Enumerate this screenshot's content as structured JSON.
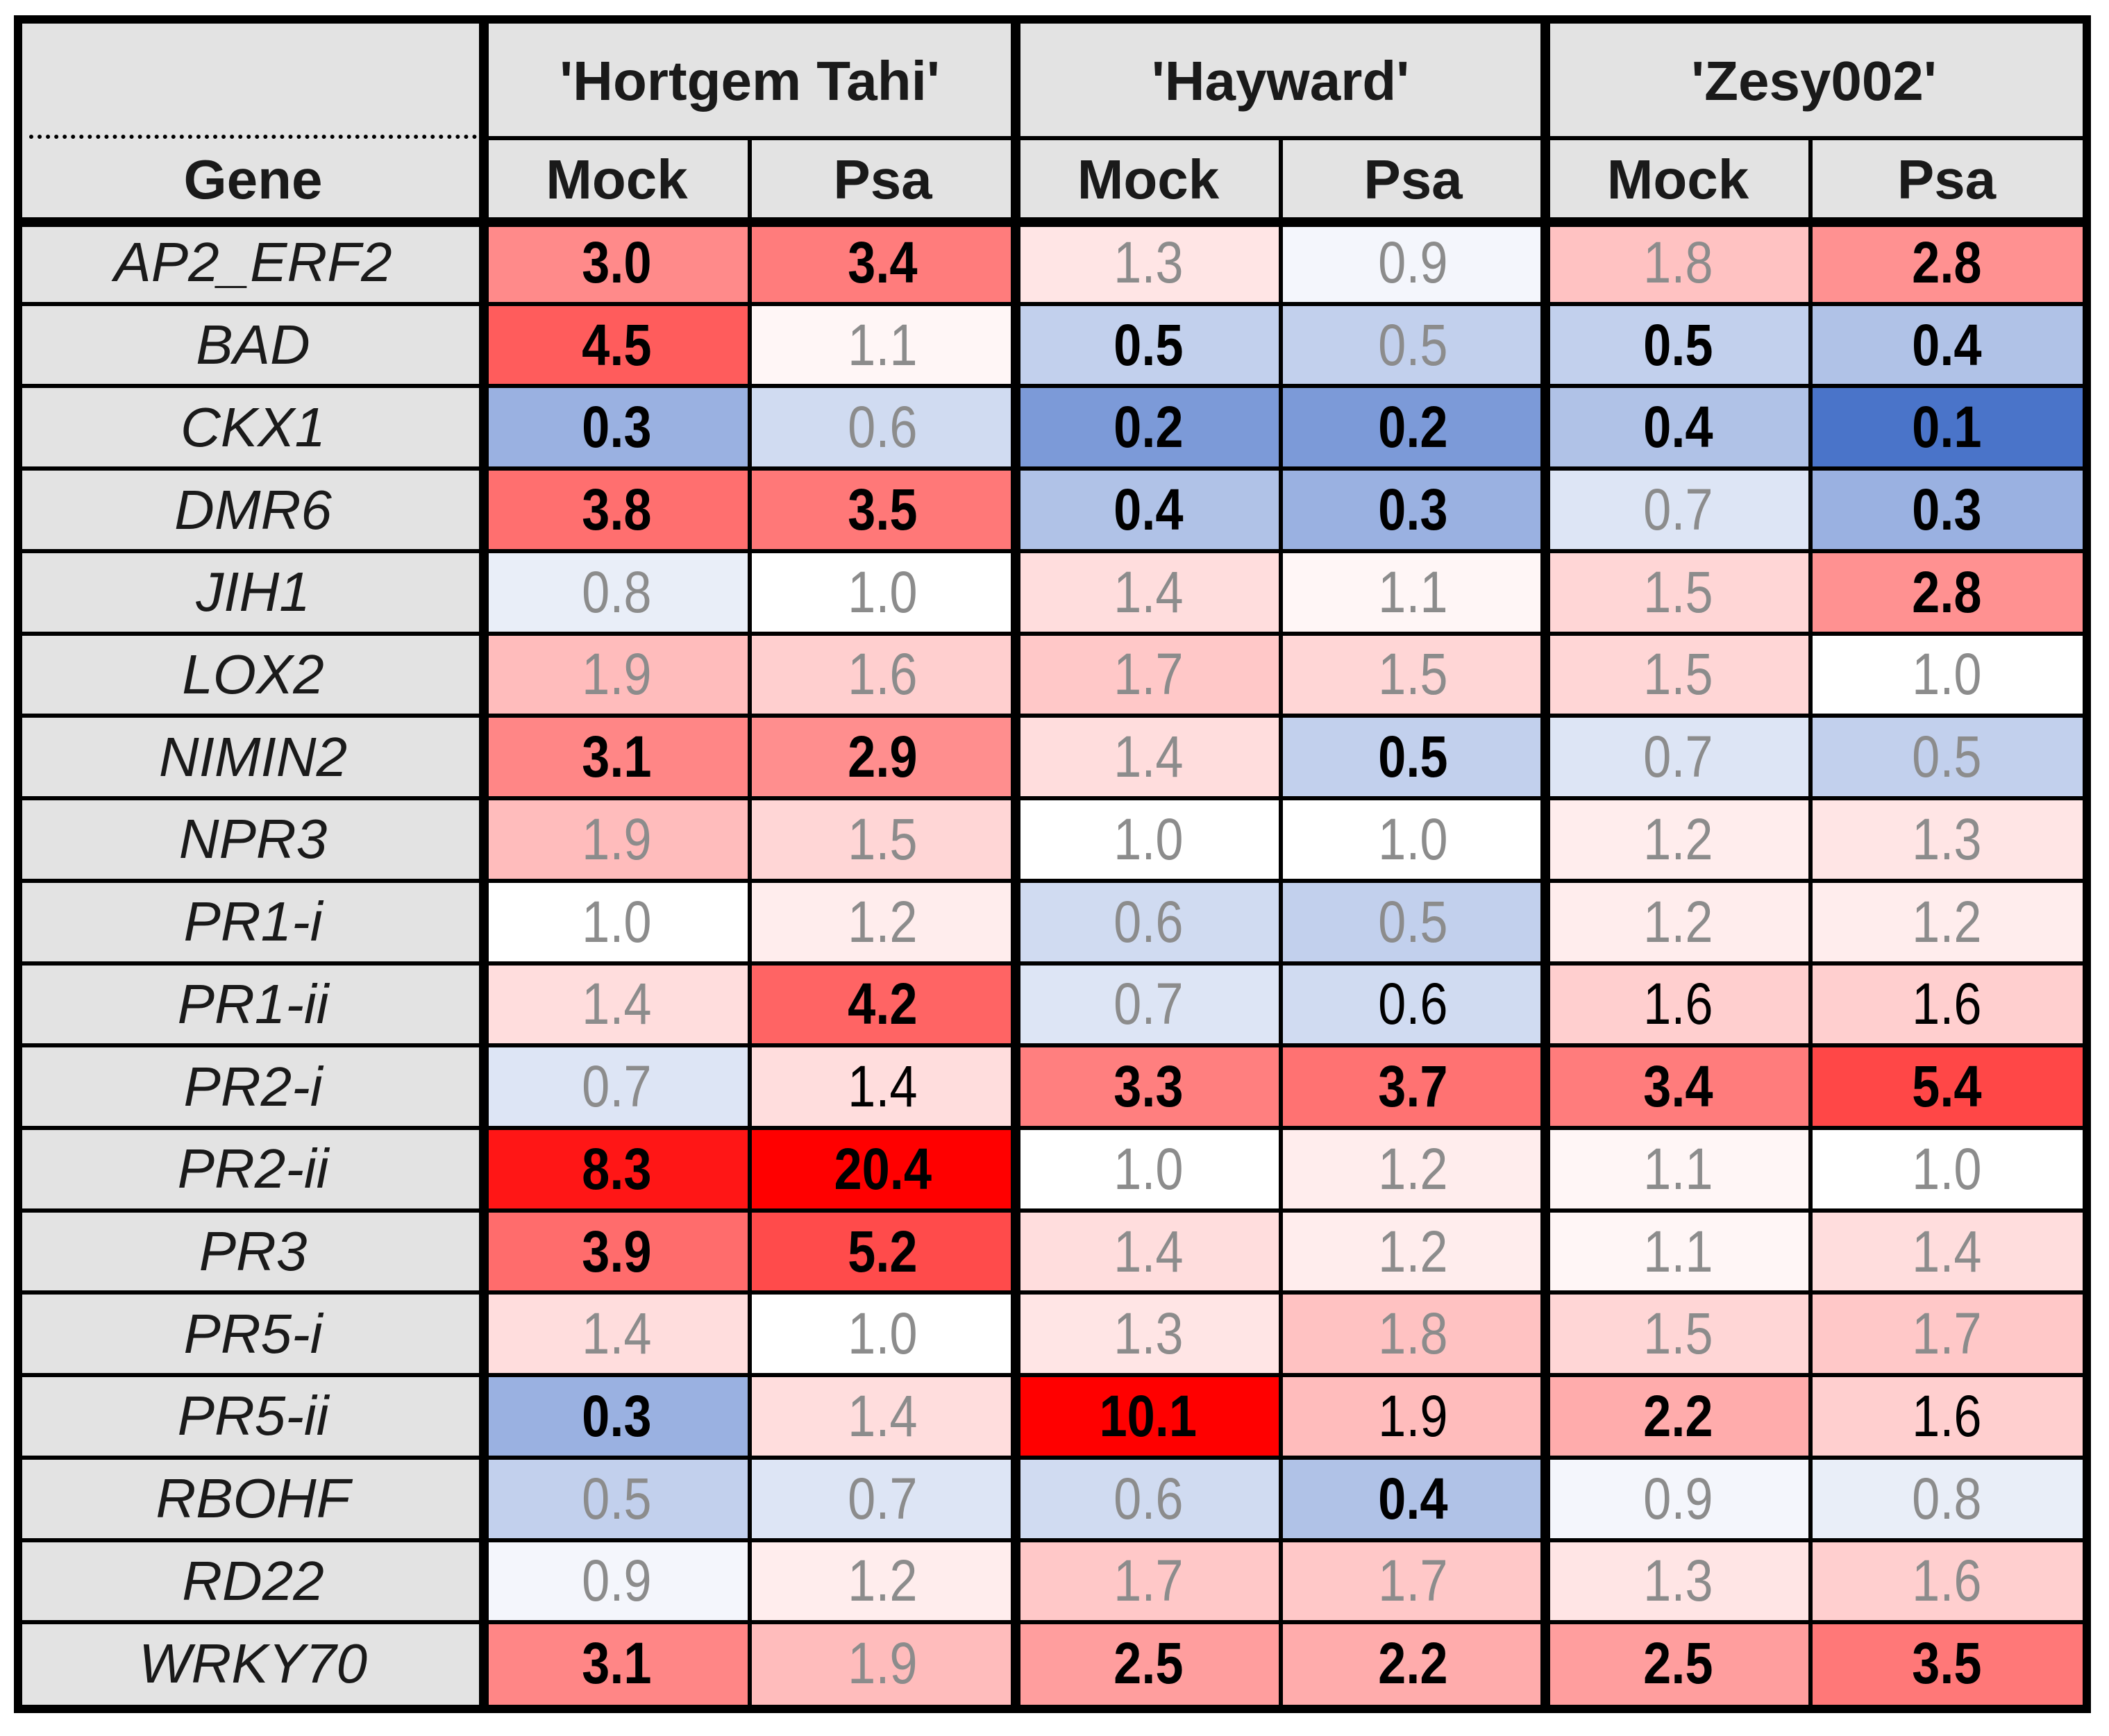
{
  "chart_data": {
    "type": "heatmap",
    "row_header": "Gene",
    "cultivars": [
      "'Hortgem Tahi'",
      "'Hayward'",
      "'Zesy002'"
    ],
    "treatments": [
      "Mock",
      "Psa"
    ],
    "columns": [
      "'Hortgem Tahi' Mock",
      "'Hortgem Tahi' Psa",
      "'Hayward' Mock",
      "'Hayward' Psa",
      "'Zesy002' Mock",
      "'Zesy002' Psa"
    ],
    "rows": [
      {
        "gene": "AP2_ERF2",
        "values": [
          "3.0",
          "3.4",
          "1.3",
          "0.9",
          "1.8",
          "2.8"
        ],
        "bold": [
          true,
          true,
          false,
          false,
          false,
          true
        ]
      },
      {
        "gene": "BAD",
        "values": [
          "4.5",
          "1.1",
          "0.5",
          "0.5",
          "0.5",
          "0.4"
        ],
        "bold": [
          true,
          false,
          true,
          false,
          true,
          true
        ]
      },
      {
        "gene": "CKX1",
        "values": [
          "0.3",
          "0.6",
          "0.2",
          "0.2",
          "0.4",
          "0.1"
        ],
        "bold": [
          true,
          false,
          true,
          true,
          true,
          true
        ]
      },
      {
        "gene": "DMR6",
        "values": [
          "3.8",
          "3.5",
          "0.4",
          "0.3",
          "0.7",
          "0.3"
        ],
        "bold": [
          true,
          true,
          true,
          true,
          false,
          true
        ]
      },
      {
        "gene": "JIH1",
        "values": [
          "0.8",
          "1.0",
          "1.4",
          "1.1",
          "1.5",
          "2.8"
        ],
        "bold": [
          false,
          false,
          false,
          false,
          false,
          true
        ]
      },
      {
        "gene": "LOX2",
        "values": [
          "1.9",
          "1.6",
          "1.7",
          "1.5",
          "1.5",
          "1.0"
        ],
        "bold": [
          false,
          false,
          false,
          false,
          false,
          false
        ]
      },
      {
        "gene": "NIMIN2",
        "values": [
          "3.1",
          "2.9",
          "1.4",
          "0.5",
          "0.7",
          "0.5"
        ],
        "bold": [
          true,
          true,
          false,
          true,
          false,
          false
        ]
      },
      {
        "gene": "NPR3",
        "values": [
          "1.9",
          "1.5",
          "1.0",
          "1.0",
          "1.2",
          "1.3"
        ],
        "bold": [
          false,
          false,
          false,
          false,
          false,
          false
        ]
      },
      {
        "gene": "PR1-i",
        "values": [
          "1.0",
          "1.2",
          "0.6",
          "0.5",
          "1.2",
          "1.2"
        ],
        "bold": [
          false,
          false,
          false,
          false,
          false,
          false
        ]
      },
      {
        "gene": "PR1-ii",
        "values": [
          "1.4",
          "4.2",
          "0.7",
          "0.6",
          "1.6",
          "1.6"
        ],
        "bold": [
          false,
          true,
          false,
          false,
          false,
          false
        ]
      },
      {
        "gene": "PR2-i",
        "values": [
          "0.7",
          "1.4",
          "3.3",
          "3.7",
          "3.4",
          "5.4"
        ],
        "bold": [
          false,
          false,
          true,
          true,
          true,
          true
        ]
      },
      {
        "gene": "PR2-ii",
        "values": [
          "8.3",
          "20.4",
          "1.0",
          "1.2",
          "1.1",
          "1.0"
        ],
        "bold": [
          true,
          true,
          false,
          false,
          false,
          false
        ]
      },
      {
        "gene": "PR3",
        "values": [
          "3.9",
          "5.2",
          "1.4",
          "1.2",
          "1.1",
          "1.4"
        ],
        "bold": [
          true,
          true,
          false,
          false,
          false,
          false
        ]
      },
      {
        "gene": "PR5-i",
        "values": [
          "1.4",
          "1.0",
          "1.3",
          "1.8",
          "1.5",
          "1.7"
        ],
        "bold": [
          false,
          false,
          false,
          false,
          false,
          false
        ]
      },
      {
        "gene": "PR5-ii",
        "values": [
          "0.3",
          "1.4",
          "10.1",
          "1.9",
          "2.2",
          "1.6"
        ],
        "bold": [
          true,
          false,
          true,
          false,
          true,
          false
        ]
      },
      {
        "gene": "RBOHF",
        "values": [
          "0.5",
          "0.7",
          "0.6",
          "0.4",
          "0.9",
          "0.8"
        ],
        "bold": [
          false,
          false,
          false,
          true,
          false,
          false
        ]
      },
      {
        "gene": "RD22",
        "values": [
          "0.9",
          "1.2",
          "1.7",
          "1.7",
          "1.3",
          "1.6"
        ],
        "bold": [
          false,
          false,
          false,
          false,
          false,
          false
        ]
      },
      {
        "gene": "WRKY70",
        "values": [
          "3.1",
          "1.9",
          "2.5",
          "2.2",
          "2.5",
          "3.5"
        ],
        "bold": [
          true,
          false,
          true,
          true,
          true,
          true
        ]
      }
    ],
    "dark_text": [
      [
        true,
        true,
        false,
        false,
        false,
        true
      ],
      [
        true,
        false,
        true,
        false,
        true,
        true
      ],
      [
        true,
        false,
        true,
        true,
        true,
        true
      ],
      [
        true,
        true,
        true,
        true,
        false,
        true
      ],
      [
        false,
        false,
        false,
        false,
        false,
        true
      ],
      [
        false,
        false,
        false,
        false,
        false,
        false
      ],
      [
        true,
        true,
        false,
        true,
        false,
        false
      ],
      [
        false,
        false,
        false,
        false,
        false,
        false
      ],
      [
        false,
        false,
        false,
        false,
        false,
        false
      ],
      [
        false,
        true,
        false,
        true,
        true,
        true
      ],
      [
        false,
        true,
        true,
        true,
        true,
        true
      ],
      [
        true,
        true,
        false,
        false,
        false,
        false
      ],
      [
        true,
        true,
        false,
        false,
        false,
        false
      ],
      [
        false,
        false,
        false,
        false,
        false,
        false
      ],
      [
        true,
        false,
        true,
        true,
        true,
        true
      ],
      [
        false,
        false,
        false,
        true,
        false,
        false
      ],
      [
        false,
        false,
        false,
        false,
        false,
        false
      ],
      [
        true,
        false,
        true,
        true,
        true,
        true
      ]
    ],
    "colors": {
      "low": "#4a74c9",
      "mid": "#ffffff",
      "high": "#ff0000",
      "header_bg": "#e3e3e3",
      "text_dark": "#000000",
      "text_light": "#8c8c8c"
    }
  }
}
